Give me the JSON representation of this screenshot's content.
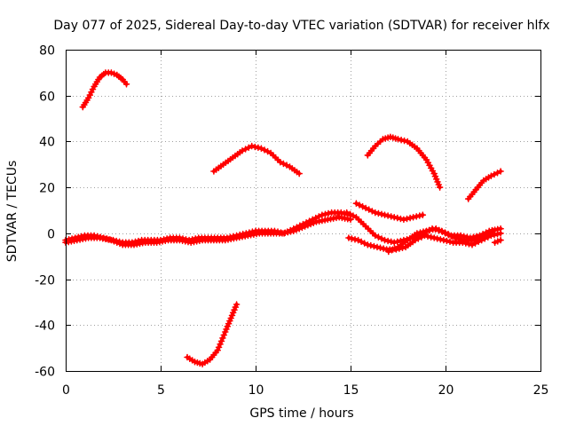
{
  "chart_data": {
    "type": "line",
    "title": "Day 077 of 2025, Sidereal Day-to-day VTEC variation (SDTVAR) for receiver hlfx",
    "xlabel": "GPS time / hours",
    "ylabel": "SDTVAR / TECUs",
    "xlim": [
      0,
      25
    ],
    "ylim": [
      -60,
      80
    ],
    "xticks": [
      0,
      5,
      10,
      15,
      20,
      25
    ],
    "yticks": [
      -60,
      -40,
      -20,
      0,
      20,
      40,
      60,
      80
    ],
    "grid": true,
    "marker": "plus",
    "series_color": "#ff0000",
    "series": [
      {
        "name": "arc-top-left",
        "x": [
          0.9,
          1.2,
          1.5,
          1.8,
          2.1,
          2.4,
          2.7,
          3.0,
          3.2
        ],
        "y": [
          55,
          59,
          64,
          68,
          70,
          70,
          69,
          67,
          65
        ]
      },
      {
        "name": "arc-mid-hump",
        "x": [
          7.8,
          8.3,
          8.8,
          9.3,
          9.8,
          10.3,
          10.8,
          11.3,
          11.8,
          12.3
        ],
        "y": [
          27,
          30,
          33,
          36,
          38,
          37,
          35,
          31,
          29,
          26
        ]
      },
      {
        "name": "arc-bottom",
        "x": [
          6.4,
          6.8,
          7.2,
          7.6,
          8.0,
          8.4,
          8.7,
          9.0
        ],
        "y": [
          -54,
          -56,
          -57,
          -55,
          -51,
          -43,
          -37,
          -31
        ]
      },
      {
        "name": "arc-right-hump",
        "x": [
          15.9,
          16.3,
          16.7,
          17.1,
          17.5,
          18.0,
          18.5,
          19.0,
          19.4,
          19.7
        ],
        "y": [
          34,
          38,
          41,
          42,
          41,
          40,
          37,
          32,
          26,
          20
        ]
      },
      {
        "name": "arc-right-rise",
        "x": [
          21.2,
          21.6,
          22.0,
          22.4,
          22.9
        ],
        "y": [
          15,
          19,
          23,
          25,
          27
        ]
      },
      {
        "name": "arc-right-descend",
        "x": [
          15.3,
          15.8,
          16.3,
          16.8,
          17.3,
          17.8,
          18.3,
          18.8
        ],
        "y": [
          13,
          11,
          9,
          8,
          7,
          6,
          7,
          8
        ]
      },
      {
        "name": "band-baseline",
        "x": [
          0.0,
          0.5,
          1.0,
          1.5,
          2.0,
          2.5,
          3.0,
          3.5,
          4.0,
          4.5,
          5.0,
          5.5,
          6.0,
          6.5,
          7.0,
          7.5,
          8.0,
          8.5,
          9.0,
          9.5,
          10.0,
          10.5,
          11.0,
          11.5,
          12.0,
          12.5,
          13.0,
          13.5,
          14.0,
          14.5,
          15.0
        ],
        "y": [
          -3,
          -2,
          -1,
          -1,
          -2,
          -3,
          -4,
          -4,
          -3,
          -3,
          -3,
          -2,
          -2,
          -3,
          -2,
          -2,
          -2,
          -2,
          -1,
          0,
          1,
          1,
          1,
          0,
          2,
          4,
          6,
          8,
          9,
          9,
          8
        ]
      },
      {
        "name": "band-baseline-lower",
        "x": [
          0.0,
          0.6,
          1.2,
          1.8,
          2.4,
          3.0,
          3.6,
          4.2,
          4.8,
          5.4,
          6.0,
          6.6,
          7.2,
          7.8,
          8.4,
          9.0,
          9.6,
          10.2,
          10.8,
          11.4,
          12.0,
          12.6,
          13.2,
          13.8,
          14.4,
          15.0
        ],
        "y": [
          -4,
          -3,
          -2,
          -2,
          -3,
          -5,
          -5,
          -4,
          -4,
          -3,
          -3,
          -4,
          -3,
          -3,
          -3,
          -2,
          -1,
          0,
          0,
          0,
          1,
          3,
          5,
          6,
          7,
          6
        ]
      },
      {
        "name": "band-right-upper",
        "x": [
          14.8,
          15.3,
          15.8,
          16.3,
          16.8,
          17.3,
          17.8,
          18.3,
          18.8,
          19.3,
          19.8,
          20.3,
          20.8,
          21.3,
          21.8,
          22.3,
          22.9
        ],
        "y": [
          9,
          7,
          3,
          -1,
          -3,
          -4,
          -3,
          -2,
          0,
          2,
          1,
          -1,
          -1,
          -2,
          -1,
          1,
          2
        ]
      },
      {
        "name": "band-right-lower",
        "x": [
          14.9,
          15.4,
          15.9,
          16.4,
          16.9,
          17.4,
          17.9,
          18.4,
          18.9,
          19.4,
          19.9,
          20.4,
          20.9,
          21.4,
          21.9,
          22.4,
          22.9
        ],
        "y": [
          -2,
          -3,
          -5,
          -6,
          -7,
          -7,
          -6,
          -3,
          -1,
          -2,
          -3,
          -4,
          -4,
          -5,
          -3,
          -1,
          0
        ]
      },
      {
        "name": "band-right-dip",
        "x": [
          17.0,
          17.5,
          18.0,
          18.5,
          19.0,
          19.5,
          20.0,
          20.5,
          21.0,
          21.5,
          22.0,
          22.5
        ],
        "y": [
          -8,
          -6,
          -3,
          0,
          1,
          2,
          0,
          -2,
          -3,
          -3,
          -1,
          1
        ]
      },
      {
        "name": "tail-end",
        "x": [
          22.6,
          22.9
        ],
        "y": [
          -4,
          -3
        ]
      }
    ]
  }
}
